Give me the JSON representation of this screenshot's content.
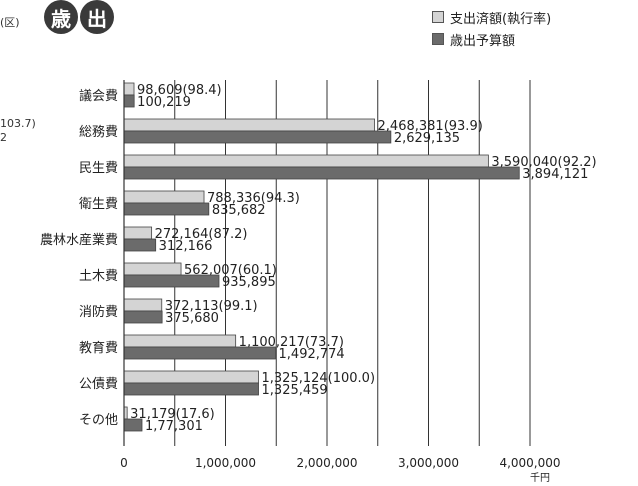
{
  "fragments": {
    "a": "(区)",
    "b": "103.7)",
    "c": "2"
  },
  "title": {
    "char1": "歳",
    "char2": "出"
  },
  "legend": [
    {
      "label": "支出済額(執行率)",
      "color": "#d4d4d4"
    },
    {
      "label": "歳出予算額",
      "color": "#6b6b6b"
    }
  ],
  "chart_data": {
    "type": "bar",
    "orientation": "horizontal",
    "categories": [
      "議会費",
      "総務費",
      "民生費",
      "衛生費",
      "農林水産業費",
      "土木費",
      "消防費",
      "教育費",
      "公債費",
      "その他"
    ],
    "series": [
      {
        "name": "支出済額(執行率)",
        "values": [
          98609,
          2468381,
          3590040,
          788336,
          272164,
          562007,
          372113,
          1100217,
          1325124,
          31179
        ],
        "labels": [
          "98,609(98.4)",
          "2,468,381(93.9)",
          "3,590,040(92.2)",
          "788,336(94.3)",
          "272,164(87.2)",
          "562,007(60.1)",
          "372,113(99.1)",
          "1,100,217(73.7)",
          "1,325,124(100.0)",
          "31,179(17.6)"
        ]
      },
      {
        "name": "歳出予算額",
        "values": [
          100219,
          2629135,
          3894121,
          835682,
          312166,
          935895,
          375680,
          1492774,
          1325459,
          177301
        ],
        "labels": [
          "100,219",
          "2,629,135",
          "3,894,121",
          "835,682",
          "312,166",
          "935,895",
          "375,680",
          "1,492,774",
          "1,325,459",
          "1,77,301"
        ]
      }
    ],
    "xlim": [
      0,
      4000000
    ],
    "xticks": [
      0,
      1000000,
      2000000,
      3000000,
      4000000
    ],
    "xtick_labels": [
      "0",
      "1,000,000",
      "2,000,000",
      "3,000,000",
      "4,000,000"
    ],
    "unit": "千円",
    "colors": [
      "#d4d4d4",
      "#6b6b6b"
    ],
    "grid": "vertical"
  }
}
